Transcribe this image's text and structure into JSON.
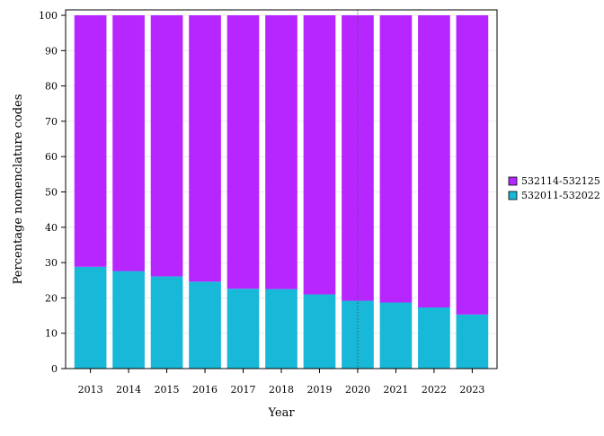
{
  "chart_data": {
    "type": "bar",
    "stacked": true,
    "orientation": "vertical",
    "categories": [
      "2013",
      "2014",
      "2015",
      "2016",
      "2017",
      "2018",
      "2019",
      "2020",
      "2021",
      "2022",
      "2023"
    ],
    "series": [
      {
        "name": "532011-532022",
        "color": "#18b8d8",
        "values": [
          28.8,
          27.6,
          26.1,
          24.6,
          22.6,
          22.5,
          21.0,
          19.2,
          18.7,
          17.3,
          15.3
        ]
      },
      {
        "name": "532114-532125",
        "color": "#b826ff",
        "values": [
          71.2,
          72.4,
          73.9,
          75.4,
          77.4,
          77.5,
          79.0,
          80.8,
          81.3,
          82.7,
          84.7
        ]
      }
    ],
    "xlabel": "Year",
    "ylabel": "Percentage nomenclature codes",
    "ylim": [
      0,
      100
    ],
    "yticks": [
      0,
      10,
      20,
      30,
      40,
      50,
      60,
      70,
      80,
      90,
      100
    ],
    "grid": true,
    "reference_line": {
      "x": "2020",
      "style": "dotted"
    },
    "legend": {
      "position": "right",
      "entries": [
        "532114-532125",
        "532011-532022"
      ]
    }
  }
}
